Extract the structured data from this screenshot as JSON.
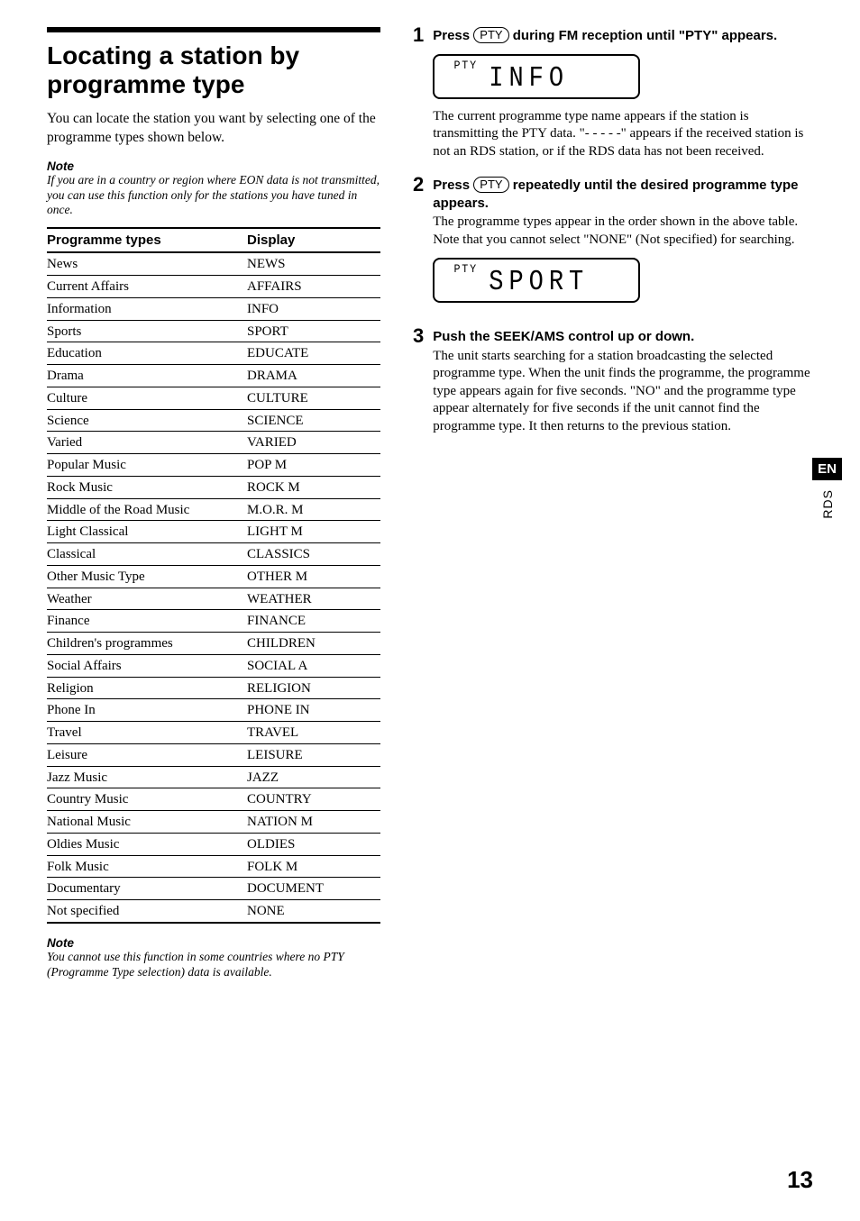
{
  "heading": "Locating a station by programme type",
  "intro": "You can locate the station you want by selecting one of the programme types shown below.",
  "note1_head": "Note",
  "note1_body": "If you are in a country or region where EON data is not transmitted, you can use this function only for the stations you have tuned in once.",
  "table": {
    "col1": "Programme types",
    "col2": "Display",
    "rows": [
      [
        "News",
        "NEWS"
      ],
      [
        "Current Affairs",
        "AFFAIRS"
      ],
      [
        "Information",
        "INFO"
      ],
      [
        "Sports",
        "SPORT"
      ],
      [
        "Education",
        "EDUCATE"
      ],
      [
        "Drama",
        "DRAMA"
      ],
      [
        "Culture",
        "CULTURE"
      ],
      [
        "Science",
        "SCIENCE"
      ],
      [
        "Varied",
        "VARIED"
      ],
      [
        "Popular Music",
        "POP M"
      ],
      [
        "Rock Music",
        "ROCK M"
      ],
      [
        "Middle of the Road Music",
        "M.O.R. M"
      ],
      [
        "Light Classical",
        "LIGHT M"
      ],
      [
        "Classical",
        "CLASSICS"
      ],
      [
        "Other Music Type",
        "OTHER M"
      ],
      [
        "Weather",
        "WEATHER"
      ],
      [
        "Finance",
        "FINANCE"
      ],
      [
        "Children's programmes",
        "CHILDREN"
      ],
      [
        "Social Affairs",
        "SOCIAL A"
      ],
      [
        "Religion",
        "RELIGION"
      ],
      [
        "Phone In",
        "PHONE IN"
      ],
      [
        "Travel",
        "TRAVEL"
      ],
      [
        "Leisure",
        "LEISURE"
      ],
      [
        "Jazz Music",
        "JAZZ"
      ],
      [
        "Country Music",
        "COUNTRY"
      ],
      [
        "National Music",
        "NATION M"
      ],
      [
        "Oldies Music",
        "OLDIES"
      ],
      [
        "Folk Music",
        "FOLK M"
      ],
      [
        "Documentary",
        "DOCUMENT"
      ],
      [
        "Not specified",
        "NONE"
      ]
    ]
  },
  "note2_head": "Note",
  "note2_body": "You cannot use this function in some countries where no PTY (Programme Type selection) data is available.",
  "steps": {
    "s1": {
      "num": "1",
      "title_a": "Press ",
      "btn": "PTY",
      "title_b": " during FM reception until \"PTY\" appears.",
      "lcd_pty": "PTY",
      "lcd_main": "INFO",
      "text": "The current programme type name appears if the station is transmitting the PTY data. \"- - - - -\" appears if the received station is not an RDS station, or if the RDS data has not been received."
    },
    "s2": {
      "num": "2",
      "title_a": "Press ",
      "btn": "PTY",
      "title_b": " repeatedly until the desired programme type appears.",
      "text": "The programme types appear in the order shown in the above table. Note that you cannot select \"NONE\" (Not specified) for searching.",
      "lcd_pty": "PTY",
      "lcd_main": "SPORT"
    },
    "s3": {
      "num": "3",
      "title": "Push the SEEK/AMS control up or down.",
      "text": "The unit starts searching for a station broadcasting the selected programme type. When the unit finds the programme, the programme type appears again for five seconds.\n\"NO\" and the programme type appear alternately for five seconds if the unit cannot find the programme type. It then returns to the previous station."
    }
  },
  "side": {
    "en": "EN",
    "rds": "RDS"
  },
  "page": "13"
}
